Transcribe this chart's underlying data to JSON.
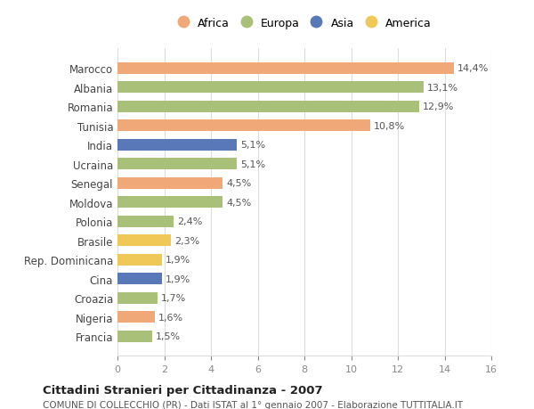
{
  "countries": [
    "Marocco",
    "Albania",
    "Romania",
    "Tunisia",
    "India",
    "Ucraina",
    "Senegal",
    "Moldova",
    "Polonia",
    "Brasile",
    "Rep. Dominicana",
    "Cina",
    "Croazia",
    "Nigeria",
    "Francia"
  ],
  "values": [
    14.4,
    13.1,
    12.9,
    10.8,
    5.1,
    5.1,
    4.5,
    4.5,
    2.4,
    2.3,
    1.9,
    1.9,
    1.7,
    1.6,
    1.5
  ],
  "labels": [
    "14,4%",
    "13,1%",
    "12,9%",
    "10,8%",
    "5,1%",
    "5,1%",
    "4,5%",
    "4,5%",
    "2,4%",
    "2,3%",
    "1,9%",
    "1,9%",
    "1,7%",
    "1,6%",
    "1,5%"
  ],
  "continents": [
    "Africa",
    "Europa",
    "Europa",
    "Africa",
    "Asia",
    "Europa",
    "Africa",
    "Europa",
    "Europa",
    "America",
    "America",
    "Asia",
    "Europa",
    "Africa",
    "Europa"
  ],
  "continent_colors": {
    "Africa": "#F0A878",
    "Europa": "#A8C078",
    "Asia": "#5878B8",
    "America": "#F0C858"
  },
  "legend_order": [
    "Africa",
    "Europa",
    "Asia",
    "America"
  ],
  "title": "Cittadini Stranieri per Cittadinanza - 2007",
  "subtitle": "COMUNE DI COLLECCHIO (PR) - Dati ISTAT al 1° gennaio 2007 - Elaborazione TUTTITALIA.IT",
  "xlim": [
    0,
    16
  ],
  "xticks": [
    0,
    2,
    4,
    6,
    8,
    10,
    12,
    14,
    16
  ],
  "background_color": "#ffffff",
  "grid_color": "#dddddd",
  "bar_height": 0.6
}
